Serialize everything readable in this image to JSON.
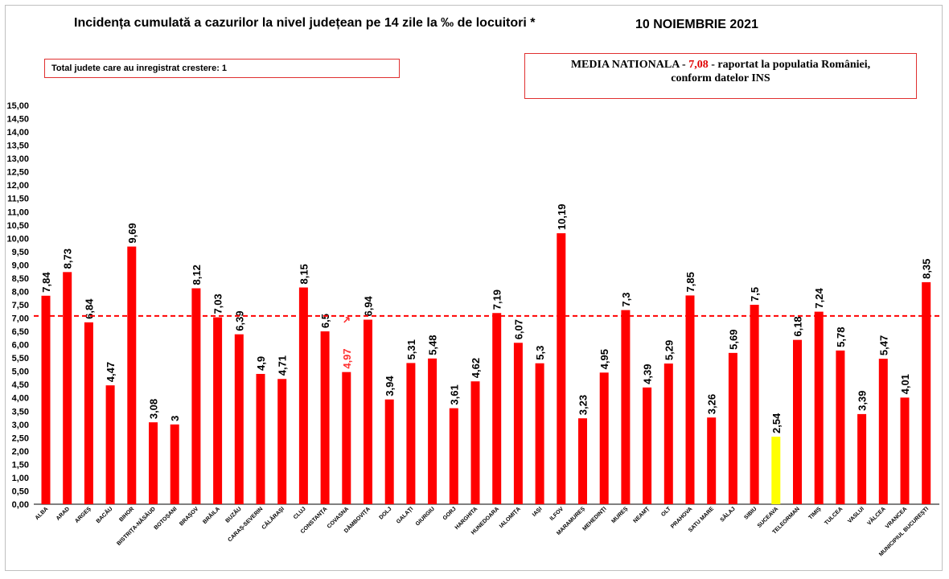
{
  "header": {
    "title": "Incidența cumulată a cazurilor la nivel județean pe 14 zile la ‰ de locuitori *",
    "date": "10 NOIEMBRIE 2021"
  },
  "info_left": "Total judete care au inregistrat crestere: 1",
  "info_right": {
    "prefix": "MEDIA NATIONALA - ",
    "value": "7,08",
    "suffix": " -  raportat la populatia României,",
    "line2": "conform datelor INS"
  },
  "colors": {
    "bar": "#ff0000",
    "highlight_bar": "#ffff00",
    "average_line": "#ff0000",
    "highlight_label": "#ff3030"
  },
  "chart_data": {
    "type": "bar",
    "title": "Incidența cumulată a cazurilor la nivel județean pe 14 zile la ‰ de locuitori *",
    "ylim": [
      0,
      15
    ],
    "ytick_step": 0.5,
    "reference_line": 7.08,
    "categories": [
      "ALBA",
      "ARAD",
      "ARGEȘ",
      "BACĂU",
      "BIHOR",
      "BISTRIȚA-NĂSĂUD",
      "BOTOȘANI",
      "BRAȘOV",
      "BRĂILA",
      "BUZĂU",
      "CARAȘ-SEVERIN",
      "CĂLĂRAȘI",
      "CLUJ",
      "CONSTANȚA",
      "COVASNA",
      "DÂMBOVIȚA",
      "DOLJ",
      "GALAȚI",
      "GIURGIU",
      "GORJ",
      "HARGHITA",
      "HUNEDOARA",
      "IALOMIȚA",
      "IAȘI",
      "ILFOV",
      "MARAMUREȘ",
      "MEHEDINȚI",
      "MUREȘ",
      "NEAMȚ",
      "OLT",
      "PRAHOVA",
      "SATU MARE",
      "SĂLAJ",
      "SIBIU",
      "SUCEAVA",
      "TELEORMAN",
      "TIMIȘ",
      "TULCEA",
      "VASLUI",
      "VÂLCEA",
      "VRANCEA",
      "MUNICIPIUL BUCUREȘTI"
    ],
    "values": [
      7.84,
      8.73,
      6.84,
      4.47,
      9.69,
      3.08,
      3,
      8.12,
      7.03,
      6.39,
      4.9,
      4.71,
      8.15,
      6.5,
      4.97,
      6.94,
      3.94,
      5.31,
      5.48,
      3.61,
      4.62,
      7.19,
      6.07,
      5.3,
      10.19,
      3.23,
      4.95,
      7.3,
      4.39,
      5.29,
      7.85,
      3.26,
      5.69,
      7.5,
      2.54,
      6.18,
      7.24,
      5.78,
      3.39,
      5.47,
      4.01,
      8.35
    ],
    "value_labels": [
      "7,84",
      "8,73",
      "6,84",
      "4,47",
      "9,69",
      "3,08",
      "3",
      "8,12",
      "7,03",
      "6,39",
      "4,9",
      "4,71",
      "8,15",
      "6,5",
      "4,97",
      "6,94",
      "3,94",
      "5,31",
      "5,48",
      "3,61",
      "4,62",
      "7,19",
      "6,07",
      "5,3",
      "10,19",
      "3,23",
      "4,95",
      "7,3",
      "4,39",
      "5,29",
      "7,85",
      "3,26",
      "5,69",
      "7,5",
      "2,54",
      "6,18",
      "7,24",
      "5,78",
      "3,39",
      "5,47",
      "4,01",
      "8,35"
    ],
    "highlight_bar_category": "SUCEAVA",
    "increase_category": "COVASNA"
  }
}
